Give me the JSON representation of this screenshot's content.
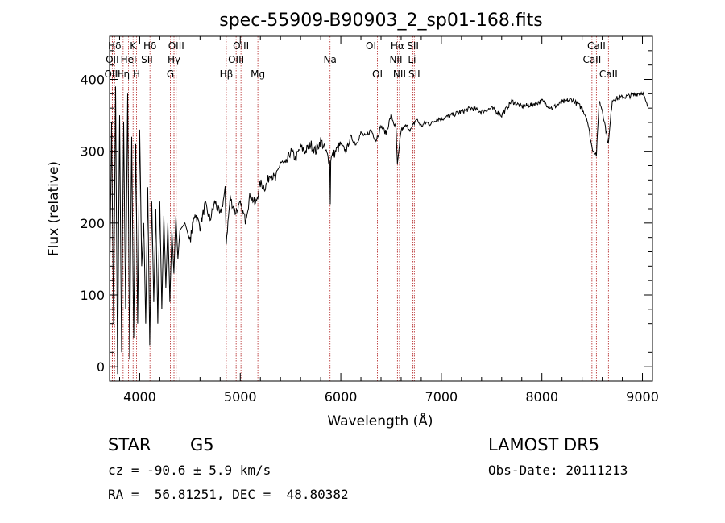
{
  "info": {
    "class_label": "STAR",
    "subclass": "G5",
    "survey": "LAMOST DR5",
    "cz_text": "cz = -90.6 ± 5.9 km/s",
    "obs_date": "Obs-Date: 20111213",
    "radec": "RA =  56.81251, DEC =  48.80382"
  },
  "colors": {
    "spectrum": "#000000",
    "lines": "#b22222"
  },
  "chart_data": {
    "type": "line",
    "title": "spec-55909-B90903_2_sp01-168.fits",
    "xlabel": "Wavelength (Å)",
    "ylabel": "Flux (relative)",
    "xlim": [
      3700,
      9100
    ],
    "ylim": [
      -20,
      460
    ],
    "xticks": [
      4000,
      5000,
      6000,
      7000,
      8000,
      9000
    ],
    "yticks": [
      0,
      100,
      200,
      300,
      400
    ],
    "grid": false,
    "spectrum": {
      "x": [
        3700,
        3720,
        3740,
        3760,
        3780,
        3800,
        3820,
        3840,
        3860,
        3880,
        3900,
        3920,
        3940,
        3960,
        3980,
        4000,
        4020,
        4040,
        4060,
        4080,
        4100,
        4120,
        4140,
        4160,
        4180,
        4200,
        4220,
        4240,
        4260,
        4280,
        4300,
        4320,
        4340,
        4360,
        4380,
        4400,
        4450,
        4500,
        4550,
        4600,
        4650,
        4700,
        4750,
        4800,
        4850,
        4861,
        4900,
        4950,
        5000,
        5050,
        5100,
        5150,
        5200,
        5250,
        5300,
        5350,
        5400,
        5450,
        5500,
        5550,
        5600,
        5650,
        5700,
        5750,
        5800,
        5850,
        5890,
        5895,
        5900,
        5950,
        6000,
        6050,
        6100,
        6150,
        6200,
        6250,
        6300,
        6350,
        6400,
        6450,
        6500,
        6550,
        6563,
        6600,
        6650,
        6700,
        6750,
        6800,
        6850,
        6900,
        6950,
        7000,
        7100,
        7200,
        7300,
        7400,
        7500,
        7600,
        7700,
        7800,
        7900,
        8000,
        8100,
        8200,
        8300,
        8400,
        8450,
        8498,
        8542,
        8570,
        8600,
        8662,
        8700,
        8800,
        8900,
        9000,
        9050
      ],
      "y": [
        100,
        340,
        60,
        390,
        -10,
        350,
        20,
        340,
        80,
        380,
        10,
        320,
        40,
        310,
        60,
        330,
        140,
        200,
        60,
        250,
        30,
        230,
        90,
        220,
        60,
        230,
        80,
        210,
        110,
        200,
        90,
        190,
        130,
        210,
        150,
        190,
        200,
        175,
        215,
        195,
        225,
        205,
        230,
        210,
        245,
        175,
        235,
        215,
        225,
        205,
        240,
        225,
        255,
        250,
        270,
        260,
        285,
        280,
        300,
        290,
        305,
        300,
        310,
        300,
        315,
        300,
        285,
        225,
        290,
        300,
        310,
        300,
        320,
        310,
        325,
        320,
        330,
        315,
        335,
        325,
        350,
        330,
        280,
        330,
        335,
        330,
        345,
        335,
        340,
        338,
        345,
        345,
        350,
        355,
        360,
        355,
        360,
        350,
        370,
        362,
        365,
        370,
        360,
        368,
        372,
        360,
        345,
        305,
        295,
        370,
        358,
        310,
        372,
        375,
        378,
        382,
        362
      ]
    },
    "lines": [
      {
        "label": "Hδ",
        "x": 3750,
        "row": 1
      },
      {
        "label": "OII",
        "x": 3727,
        "row": 2
      },
      {
        "label": "OIII",
        "x": 3728,
        "row": 3
      },
      {
        "label": "K",
        "x": 3934,
        "row": 1
      },
      {
        "label": "HeI",
        "x": 3889,
        "row": 2
      },
      {
        "label": "Hη",
        "x": 3835,
        "row": 3
      },
      {
        "label": "H",
        "x": 3969,
        "row": 3
      },
      {
        "label": "Hδ",
        "x": 4102,
        "row": 1
      },
      {
        "label": "SII",
        "x": 4072,
        "row": 2
      },
      {
        "label": "OIII",
        "x": 4363,
        "row": 1
      },
      {
        "label": "Hγ",
        "x": 4341,
        "row": 2
      },
      {
        "label": "G",
        "x": 4305,
        "row": 3
      },
      {
        "label": "OIII",
        "x": 5007,
        "row": 1
      },
      {
        "label": "OIII",
        "x": 4959,
        "row": 2
      },
      {
        "label": "Hβ",
        "x": 4861,
        "row": 3
      },
      {
        "label": "Mg",
        "x": 5175,
        "row": 3
      },
      {
        "label": "Na",
        "x": 5893,
        "row": 2
      },
      {
        "label": "OI",
        "x": 6300,
        "row": 1
      },
      {
        "label": "OI",
        "x": 6364,
        "row": 3
      },
      {
        "label": "Hα",
        "x": 6563,
        "row": 1
      },
      {
        "label": "NII",
        "x": 6548,
        "row": 2
      },
      {
        "label": "NII",
        "x": 6584,
        "row": 3
      },
      {
        "label": "SII",
        "x": 6717,
        "row": 1
      },
      {
        "label": "Li",
        "x": 6708,
        "row": 2
      },
      {
        "label": "SII",
        "x": 6731,
        "row": 3
      },
      {
        "label": "CaII",
        "x": 8542,
        "row": 1
      },
      {
        "label": "CaII",
        "x": 8498,
        "row": 2
      },
      {
        "label": "CaII",
        "x": 8662,
        "row": 3
      }
    ]
  }
}
